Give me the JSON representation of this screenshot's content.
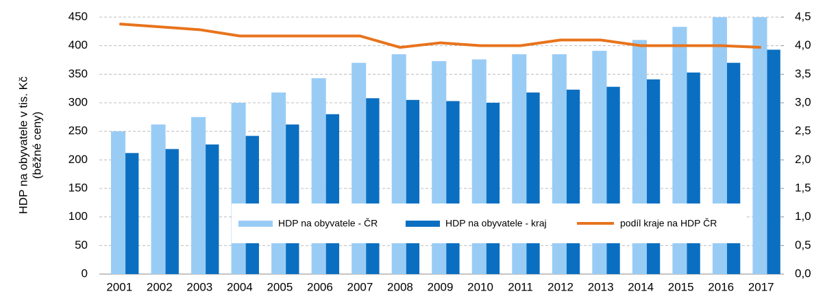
{
  "chart_data": {
    "type": "bar-line",
    "y_label": [
      "HDP na obyvatele v tis. Kč",
      "(běžné ceny)"
    ],
    "categories": [
      "2001",
      "2002",
      "2003",
      "2004",
      "2005",
      "2006",
      "2007",
      "2008",
      "2009",
      "2010",
      "2011",
      "2012",
      "2013",
      "2014",
      "2015",
      "2016",
      "2017"
    ],
    "series": [
      {
        "name": "HDP na obyvatele - ČR",
        "type": "bar",
        "color": "#99ccf5",
        "values": [
          250,
          262,
          275,
          300,
          318,
          343,
          370,
          385,
          373,
          376,
          385,
          385,
          391,
          410,
          433,
          450,
          450
        ]
      },
      {
        "name": "HDP na obyvatele - kraj",
        "type": "bar",
        "color": "#0b6fc1",
        "values": [
          212,
          219,
          227,
          242,
          262,
          280,
          308,
          305,
          303,
          300,
          318,
          323,
          328,
          341,
          353,
          370,
          393
        ]
      },
      {
        "name": "podíl kraje na HDP ČR",
        "type": "line",
        "axis": "y2",
        "color": "#e8731c",
        "values": [
          4.38,
          4.33,
          4.28,
          4.17,
          4.17,
          4.17,
          4.17,
          3.97,
          4.05,
          4.0,
          4.0,
          4.1,
          4.1,
          4.0,
          4.0,
          4.0,
          3.97
        ]
      }
    ],
    "ylim": [
      0,
      450
    ],
    "yticks": [
      0,
      50,
      100,
      150,
      200,
      250,
      300,
      350,
      400,
      450
    ],
    "y2lim": [
      0,
      4.5
    ],
    "y2ticks": [
      {
        "value": 0,
        "label": "0,0"
      },
      {
        "value": 0.5,
        "label": "0,5"
      },
      {
        "value": 1,
        "label": "1,0"
      },
      {
        "value": 1.5,
        "label": "1,5"
      },
      {
        "value": 2,
        "label": "2,0"
      },
      {
        "value": 2.5,
        "label": "2,5"
      },
      {
        "value": 3,
        "label": "3,0"
      },
      {
        "value": 3.5,
        "label": "3,5"
      },
      {
        "value": 4,
        "label": "4,0"
      },
      {
        "value": 4.5,
        "label": "4,5"
      }
    ],
    "grid": true
  }
}
